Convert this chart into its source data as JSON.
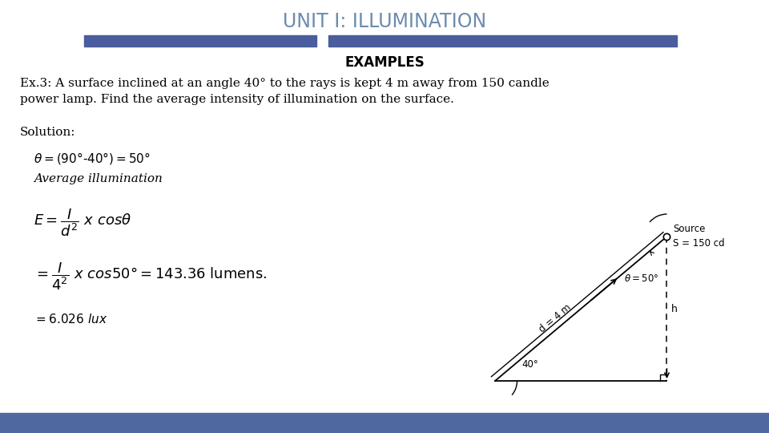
{
  "title": "UNIT I: ILLUMINATION",
  "title_color": "#6B8CAE",
  "examples_heading": "EXAMPLES",
  "problem_line1": "Ex.3: A surface inclined at an angle 40° to the rays is kept 4 m away from 150 candle",
  "problem_line2": "power lamp. Find the average intensity of illumination on the surface.",
  "solution_label": "Solution:",
  "bg_color": "#ffffff",
  "bar_color": "#4a5d9c",
  "bar_bottom_color": "#5068a0",
  "diagram": {
    "source_label": "Source",
    "s_label": "S = 150 cd",
    "theta_label": "θ = 50°",
    "d_label": "d = 4 m",
    "h_label": "h",
    "angle_label": "40°"
  }
}
